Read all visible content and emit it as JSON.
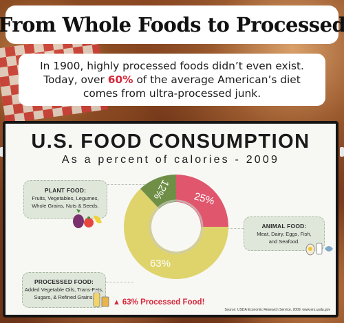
{
  "header": {
    "title": "From Whole Foods to Processed"
  },
  "intro": {
    "line1": "In 1900, highly processed foods didn’t even exist.",
    "line2_pre": "Today, over ",
    "line2_highlight": "60%",
    "line2_post": " of the average American’s diet",
    "line3": "comes from ultra-processed junk."
  },
  "infographic": {
    "title": "U.S. FOOD CONSUMPTION",
    "subtitle": "As a percent of calories - 2009",
    "plant_food": {
      "heading": "PLANT FOOD:",
      "line1": "Fruits, Vegetables, Legumes,",
      "line2": "Whole Grains, Nuts & Seeds."
    },
    "animal_food": {
      "heading": "ANIMAL FOOD:",
      "line1": "Meat, Dairy, Eggs, Fish,",
      "line2": "and Seafood."
    },
    "processed_food": {
      "heading": "PROCESSED FOOD:",
      "line1": "Added Vegetable Oils, Trans-Fats,",
      "line2": "Sugars, & Refined Grains."
    },
    "warning": "63% Processed Food!",
    "source": "Source: USDA Economic Research Service, 2009; www.ers.usda.gov"
  },
  "colors": {
    "animal": "#e0566d",
    "processed": "#dfd46c",
    "plant": "#6f8f47",
    "accent_red": "#d8283b"
  },
  "chart_data": {
    "type": "pie",
    "title": "U.S. FOOD CONSUMPTION",
    "subtitle": "As a percent of calories - 2009",
    "categories": [
      "ANIMAL FOOD",
      "PROCESSED FOOD",
      "PLANT FOOD"
    ],
    "values": [
      25,
      63,
      12
    ],
    "labels": [
      "25%",
      "63%",
      "12%"
    ],
    "colors": [
      "#e0566d",
      "#dfd46c",
      "#6f8f47"
    ],
    "donut": true
  }
}
